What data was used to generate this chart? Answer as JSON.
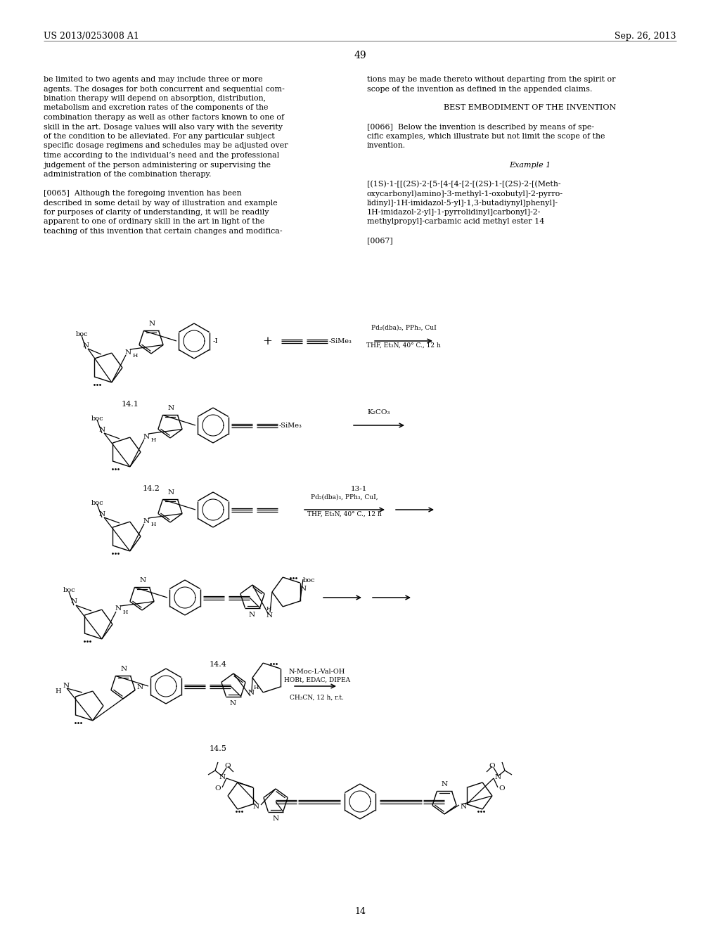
{
  "bg_color": "#ffffff",
  "header_left": "US 2013/0253008 A1",
  "header_right": "Sep. 26, 2013",
  "page_number": "49",
  "footer_number": "14",
  "left_col": [
    "be limited to two agents and may include three or more",
    "agents. The dosages for both concurrent and sequential com-",
    "bination therapy will depend on absorption, distribution,",
    "metabolism and excretion rates of the components of the",
    "combination therapy as well as other factors known to one of",
    "skill in the art. Dosage values will also vary with the severity",
    "of the condition to be alleviated. For any particular subject",
    "specific dosage regimens and schedules may be adjusted over",
    "time according to the individual’s need and the professional",
    "judgement of the person administering or supervising the",
    "administration of the combination therapy.",
    "",
    "[0065]  Although the foregoing invention has been",
    "described in some detail by way of illustration and example",
    "for purposes of clarity of understanding, it will be readily",
    "apparent to one of ordinary skill in the art in light of the",
    "teaching of this invention that certain changes and modifica-"
  ],
  "right_col": [
    "tions may be made thereto without departing from the spirit or",
    "scope of the invention as defined in the appended claims.",
    "",
    "BEST EMBODIMENT OF THE INVENTION",
    "",
    "[0066]  Below the invention is described by means of spe-",
    "cific examples, which illustrate but not limit the scope of the",
    "invention.",
    "",
    "Example 1",
    "",
    "[(1S)-1-[[(2S)-2-[5-[4-[4-[2-[(2S)-1-[(2S)-2-[(Meth-",
    "oxycarbonyl)amino]-3-methyl-1-oxobutyl]-2-pyrro-",
    "lidinyl]-1H-imidazol-5-yl]-1,3-butadiynyl]phenyl]-",
    "1H-imidazol-2-yl]-1-pyrrolidinyl]carbonyl]-2-",
    "methylpropyl]-carbamic acid methyl ester 14",
    "",
    "[0067]"
  ]
}
